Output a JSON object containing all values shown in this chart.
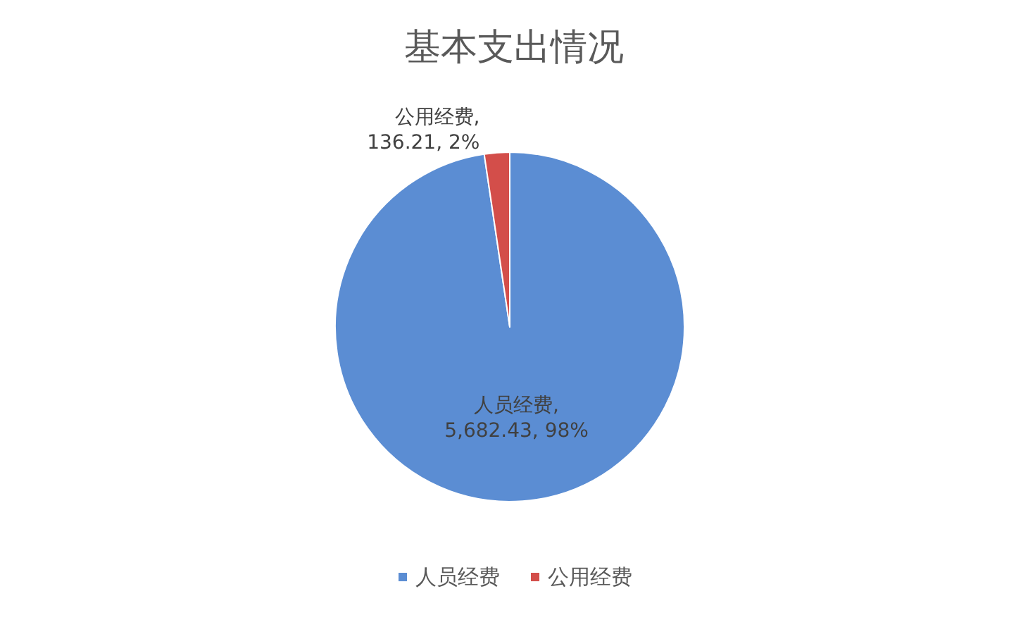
{
  "chart_data": {
    "type": "pie",
    "title": "基本支出情况",
    "categories": [
      "人员经费",
      "公用经费"
    ],
    "values": [
      5682.43,
      136.21
    ],
    "colors": [
      "#5b8dd3",
      "#d34e4a"
    ],
    "value_labels": [
      "人员经费,\n5,682.43, 98%",
      "公用经费,\n136.21, 2%"
    ],
    "legend": "bottom"
  }
}
